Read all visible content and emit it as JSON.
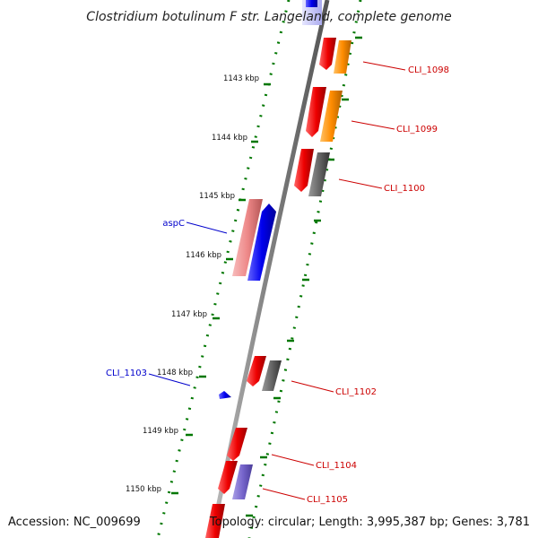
{
  "title": "Clostridium botulinum F str. Langeland, complete genome",
  "footer": {
    "accession": "Accession: NC_009699",
    "topology": "Topology: circular; Length: 3,995,387 bp; Genes: 3,781"
  },
  "ticks": [
    {
      "label": "1143 kbp"
    },
    {
      "label": "1144 kbp"
    },
    {
      "label": "1145 kbp"
    },
    {
      "label": "1146 kbp"
    },
    {
      "label": "1147 kbp"
    },
    {
      "label": "1148 kbp"
    },
    {
      "label": "1149 kbp"
    },
    {
      "label": "1150 kbp"
    }
  ],
  "gene_labels": [
    {
      "name": "CLI_1098",
      "color": "#cc0000"
    },
    {
      "name": "CLI_1099",
      "color": "#cc0000"
    },
    {
      "name": "CLI_1100",
      "color": "#cc0000"
    },
    {
      "name": "aspC",
      "color": "#0000cc"
    },
    {
      "name": "CLI_1103",
      "color": "#0000cc"
    },
    {
      "name": "CLI_1102",
      "color": "#cc0000"
    },
    {
      "name": "CLI_1104",
      "color": "#cc0000"
    },
    {
      "name": "CLI_1105",
      "color": "#cc0000"
    }
  ],
  "colors": {
    "backbone": "#808080",
    "tick": "#007700",
    "forward_cds": "#0000ee",
    "reverse_cds": "#ee0000",
    "orange_cds": "#ff8c00",
    "grey_cds": "#666666",
    "pink_cds": "#ee8888",
    "purple_cds": "#7766cc"
  }
}
